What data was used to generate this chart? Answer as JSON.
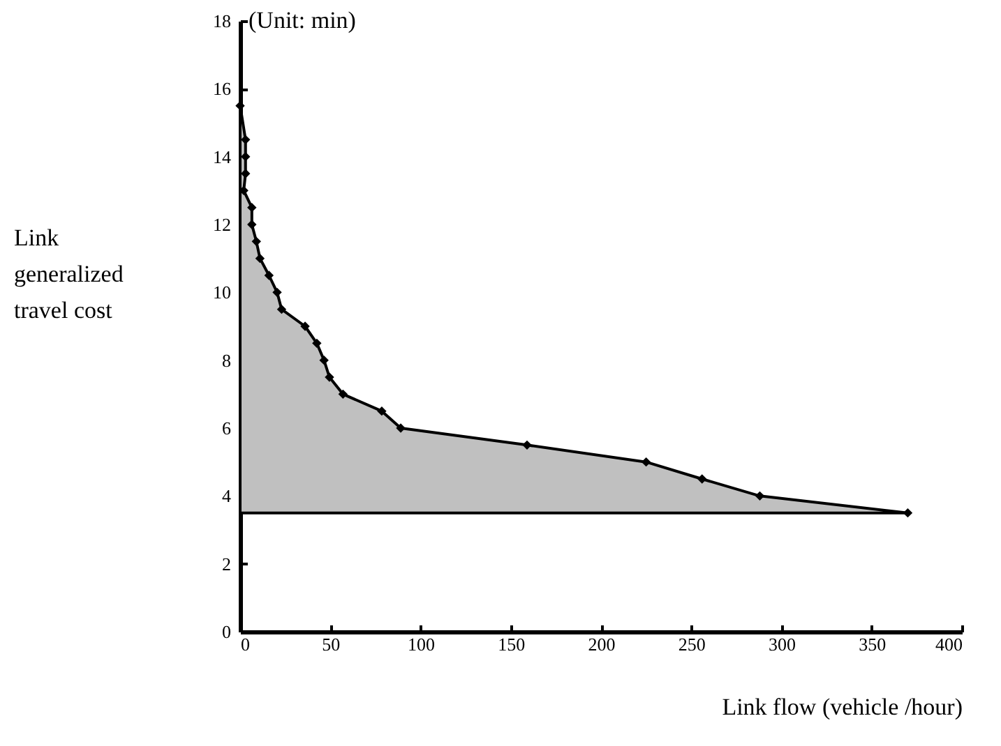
{
  "chart_data": {
    "type": "area",
    "xlabel": "Link flow (vehicle /hour)",
    "ylabel": "Link generalized travel cost",
    "annotations": [
      "(Unit: min)"
    ],
    "x": [
      0,
      3,
      3,
      3,
      2,
      6.5,
      6.5,
      9,
      11,
      16,
      20.5,
      23,
      36,
      42.5,
      46.5,
      49.5,
      57,
      78.5,
      89,
      159,
      225,
      256,
      288,
      370
    ],
    "series": [
      {
        "color": "#c0c0c0",
        "values": [
          15.5,
          14.5,
          14,
          13.5,
          13,
          12.5,
          12,
          11.5,
          11,
          10.5,
          10,
          9.5,
          9,
          8.5,
          8,
          7.5,
          7,
          6.5,
          6,
          5.5,
          5,
          4.5,
          4,
          3.5
        ]
      }
    ],
    "xlim": [
      0,
      400
    ],
    "xticks": [
      0,
      50,
      100,
      150,
      200,
      250,
      300,
      350,
      400
    ],
    "ylim": [
      0,
      18
    ],
    "yticks": [
      0,
      2,
      4,
      6,
      8,
      10,
      12,
      14,
      16,
      18
    ],
    "grid": false,
    "marker": "diamond"
  }
}
